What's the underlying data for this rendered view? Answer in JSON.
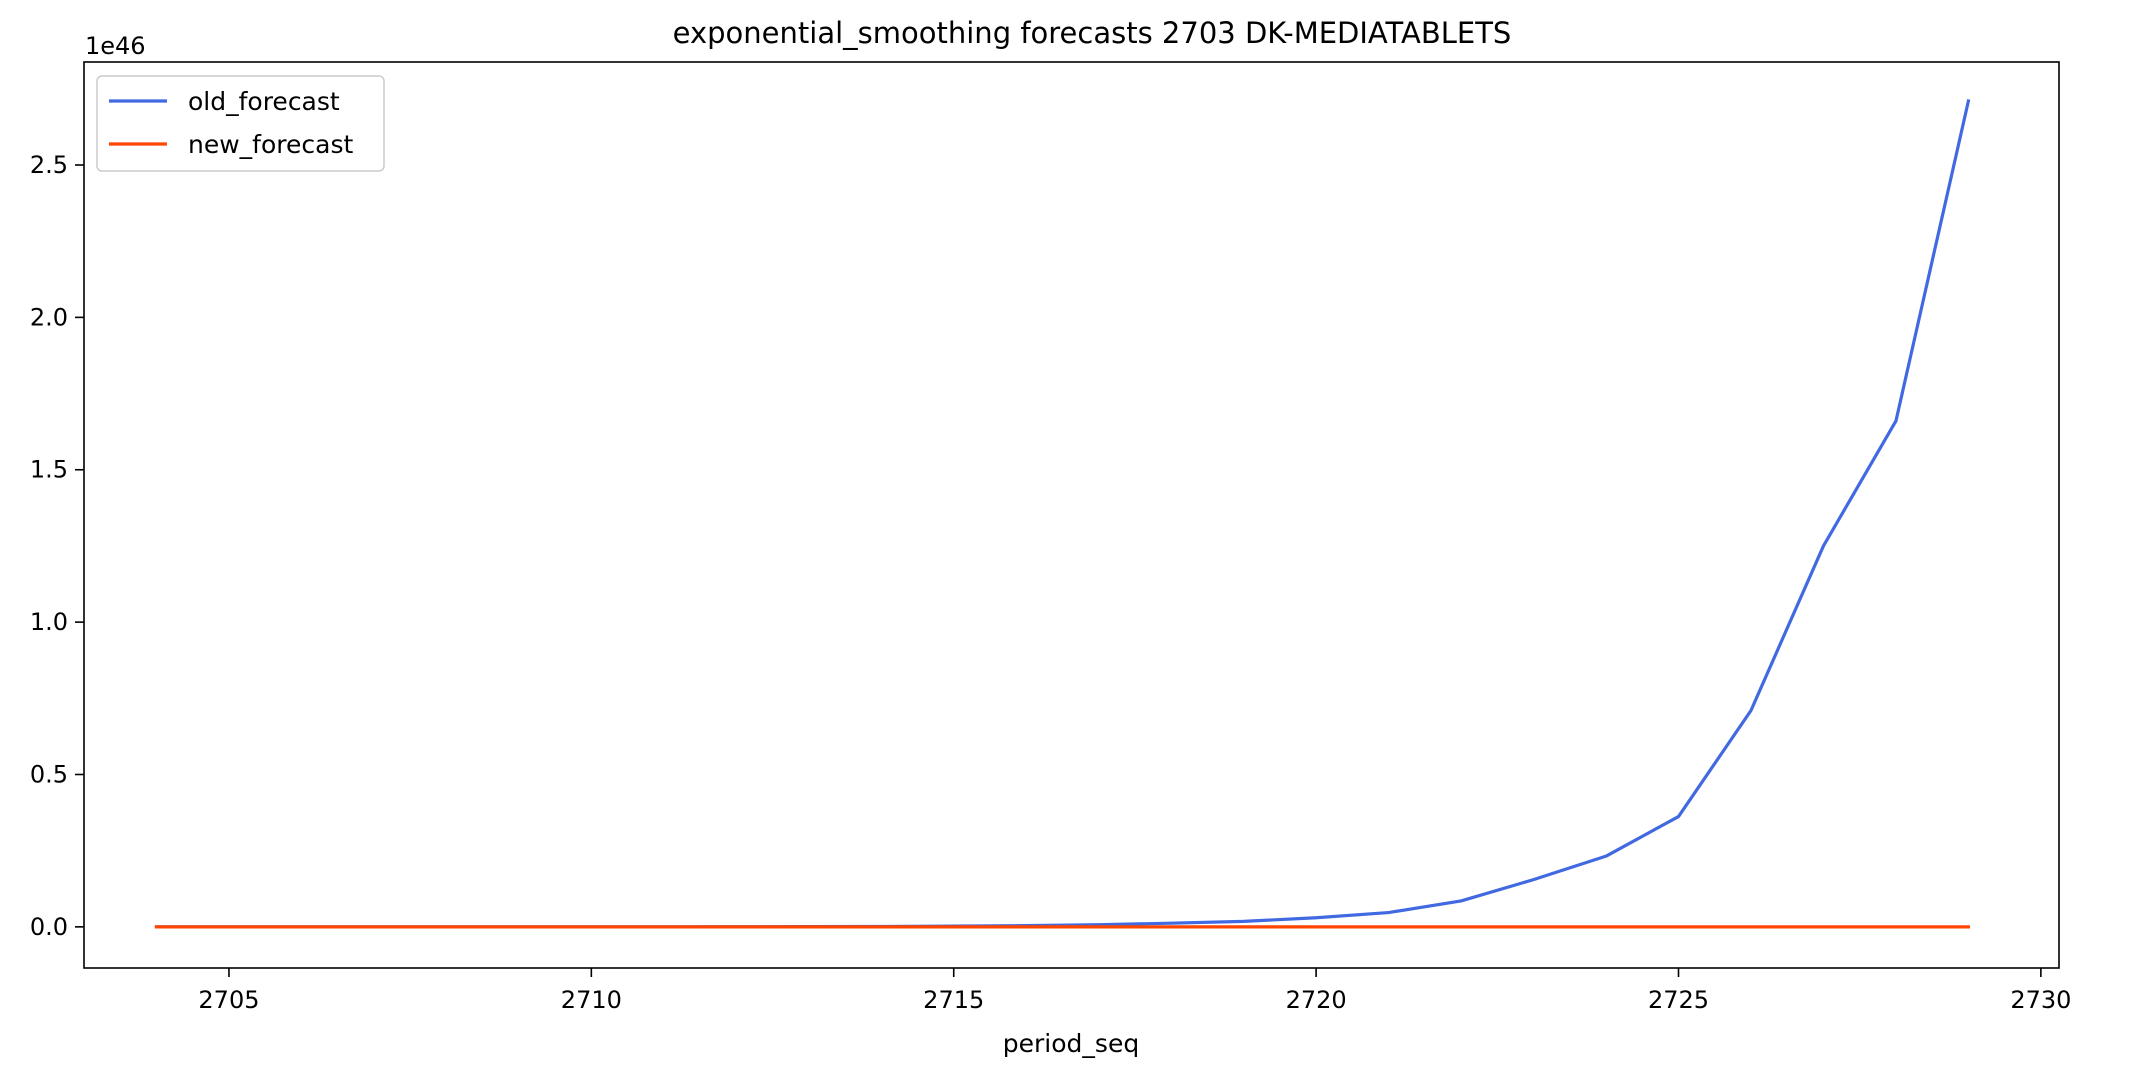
{
  "chart_data": {
    "type": "line",
    "title": "exponential_smoothing forecasts 2703 DK-MEDIATABLETS",
    "xlabel": "period_seq",
    "ylabel": "",
    "offset_label": "1e46",
    "xlim": [
      2703.0,
      2730.25
    ],
    "ylim": [
      -0.135,
      2.838
    ],
    "x_ticks": [
      2705,
      2710,
      2715,
      2720,
      2725,
      2730
    ],
    "y_ticks": [
      0.0,
      0.5,
      1.0,
      1.5,
      2.0,
      2.5
    ],
    "y_tick_labels": [
      "0.0",
      "0.5",
      "1.0",
      "1.5",
      "2.0",
      "2.5"
    ],
    "legend_position": "upper-left",
    "grid": false,
    "x": [
      2704,
      2705,
      2706,
      2707,
      2708,
      2709,
      2710,
      2711,
      2712,
      2713,
      2714,
      2715,
      2716,
      2717,
      2718,
      2719,
      2720,
      2721,
      2722,
      2723,
      2724,
      2725,
      2726,
      2727,
      2728,
      2729
    ],
    "series": [
      {
        "name": "old_forecast",
        "color": "#4169E1",
        "values": [
          0,
          0,
          0,
          0,
          0,
          0,
          0,
          0,
          0.0005,
          0.0008,
          0.0012,
          0.0025,
          0.004,
          0.007,
          0.012,
          0.018,
          0.03,
          0.047,
          0.085,
          0.155,
          0.232,
          0.362,
          0.71,
          1.25,
          1.66,
          2.71
        ]
      },
      {
        "name": "new_forecast",
        "color": "#FF4500",
        "values": [
          0,
          0,
          0,
          0,
          0,
          0,
          0,
          0,
          0,
          0,
          0,
          0,
          0,
          0,
          0,
          0,
          0,
          0,
          0,
          0,
          0,
          0,
          0,
          0,
          0,
          0
        ]
      }
    ]
  }
}
